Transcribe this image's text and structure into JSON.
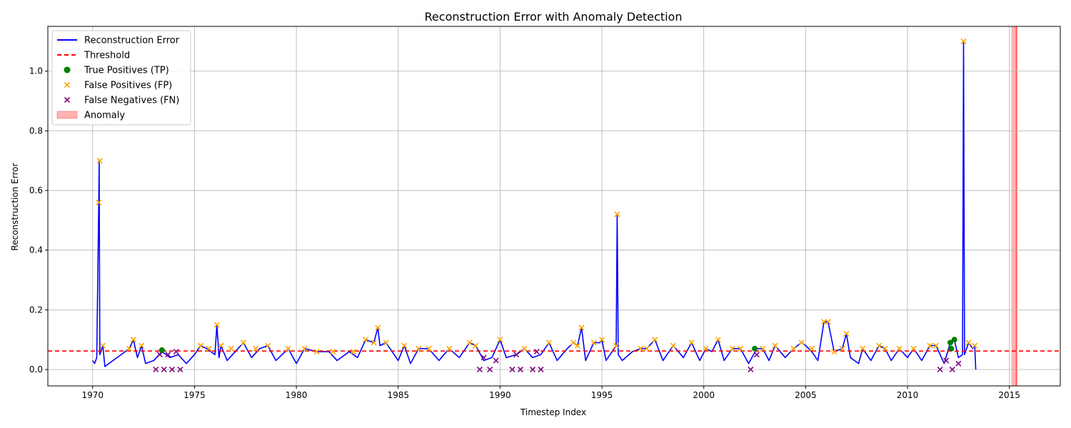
{
  "chart_data": {
    "type": "line",
    "title": "Reconstruction Error with Anomaly Detection",
    "xlabel": "Timestep Index",
    "ylabel": "Reconstruction Error",
    "xlim": [
      1967.8,
      2017.5
    ],
    "ylim": [
      -0.055,
      1.15
    ],
    "x_ticks": [
      1970,
      1975,
      1980,
      1985,
      1990,
      1995,
      2000,
      2005,
      2010,
      2015
    ],
    "y_ticks": [
      0.0,
      0.2,
      0.4,
      0.6,
      0.8,
      1.0
    ],
    "x_tick_labels": [
      "1970",
      "1975",
      "1980",
      "1985",
      "1990",
      "1995",
      "2000",
      "2005",
      "2010",
      "2015"
    ],
    "y_tick_labels": [
      "0.0",
      "0.2",
      "0.4",
      "0.6",
      "0.8",
      "1.0"
    ],
    "grid": true,
    "legend_position": "top-left",
    "colors": {
      "error_line": "#0000ff",
      "threshold": "#ff0000",
      "tp": "#008000",
      "fp": "#ffa500",
      "fn": "#800080",
      "anomaly": "#ff0000"
    },
    "threshold": 0.062,
    "legend": [
      {
        "label": "Reconstruction Error",
        "kind": "line"
      },
      {
        "label": "Threshold",
        "kind": "dashed"
      },
      {
        "label": "True Positives (TP)",
        "kind": "dot"
      },
      {
        "label": "False Positives (FP)",
        "kind": "x-orange"
      },
      {
        "label": "False Negatives (FN)",
        "kind": "x-purple"
      },
      {
        "label": "Anomaly",
        "kind": "patch"
      }
    ],
    "anomaly_span": [
      2015.1,
      2015.35
    ],
    "series": [
      {
        "name": "Reconstruction Error",
        "points": [
          [
            1970.0,
            0.03
          ],
          [
            1970.1,
            0.02
          ],
          [
            1970.2,
            0.04
          ],
          [
            1970.3,
            0.56
          ],
          [
            1970.32,
            0.7
          ],
          [
            1970.35,
            0.05
          ],
          [
            1970.5,
            0.08
          ],
          [
            1970.6,
            0.01
          ],
          [
            1971.0,
            0.03
          ],
          [
            1971.4,
            0.05
          ],
          [
            1971.8,
            0.07
          ],
          [
            1972.0,
            0.1
          ],
          [
            1972.2,
            0.04
          ],
          [
            1972.4,
            0.08
          ],
          [
            1972.6,
            0.02
          ],
          [
            1973.0,
            0.03
          ],
          [
            1973.4,
            0.06
          ],
          [
            1973.8,
            0.04
          ],
          [
            1974.2,
            0.05
          ],
          [
            1974.6,
            0.02
          ],
          [
            1975.0,
            0.05
          ],
          [
            1975.3,
            0.08
          ],
          [
            1975.6,
            0.07
          ],
          [
            1976.0,
            0.05
          ],
          [
            1976.1,
            0.15
          ],
          [
            1976.2,
            0.04
          ],
          [
            1976.3,
            0.08
          ],
          [
            1976.6,
            0.03
          ],
          [
            1977.0,
            0.06
          ],
          [
            1977.4,
            0.09
          ],
          [
            1977.8,
            0.04
          ],
          [
            1978.2,
            0.07
          ],
          [
            1978.6,
            0.08
          ],
          [
            1979.0,
            0.03
          ],
          [
            1979.6,
            0.07
          ],
          [
            1980.0,
            0.02
          ],
          [
            1980.4,
            0.07
          ],
          [
            1981.0,
            0.06
          ],
          [
            1981.6,
            0.06
          ],
          [
            1982.0,
            0.03
          ],
          [
            1982.6,
            0.06
          ],
          [
            1983.0,
            0.04
          ],
          [
            1983.4,
            0.1
          ],
          [
            1983.8,
            0.09
          ],
          [
            1984.0,
            0.14
          ],
          [
            1984.1,
            0.08
          ],
          [
            1984.4,
            0.09
          ],
          [
            1984.7,
            0.06
          ],
          [
            1985.0,
            0.03
          ],
          [
            1985.3,
            0.08
          ],
          [
            1985.6,
            0.02
          ],
          [
            1986.0,
            0.07
          ],
          [
            1986.5,
            0.07
          ],
          [
            1987.0,
            0.03
          ],
          [
            1987.5,
            0.07
          ],
          [
            1988.0,
            0.04
          ],
          [
            1988.5,
            0.09
          ],
          [
            1988.8,
            0.08
          ],
          [
            1989.2,
            0.03
          ],
          [
            1989.6,
            0.04
          ],
          [
            1990.0,
            0.1
          ],
          [
            1990.3,
            0.04
          ],
          [
            1990.8,
            0.05
          ],
          [
            1991.2,
            0.07
          ],
          [
            1991.6,
            0.04
          ],
          [
            1992.0,
            0.05
          ],
          [
            1992.4,
            0.09
          ],
          [
            1992.8,
            0.03
          ],
          [
            1993.3,
            0.07
          ],
          [
            1993.6,
            0.09
          ],
          [
            1993.8,
            0.08
          ],
          [
            1994.0,
            0.14
          ],
          [
            1994.2,
            0.03
          ],
          [
            1994.6,
            0.09
          ],
          [
            1994.9,
            0.09
          ],
          [
            1995.0,
            0.1
          ],
          [
            1995.2,
            0.03
          ],
          [
            1995.4,
            0.05
          ],
          [
            1995.7,
            0.08
          ],
          [
            1995.75,
            0.52
          ],
          [
            1995.8,
            0.05
          ],
          [
            1996.0,
            0.03
          ],
          [
            1996.5,
            0.06
          ],
          [
            1996.9,
            0.07
          ],
          [
            1997.2,
            0.07
          ],
          [
            1997.6,
            0.1
          ],
          [
            1998.0,
            0.03
          ],
          [
            1998.5,
            0.08
          ],
          [
            1999.0,
            0.04
          ],
          [
            1999.4,
            0.09
          ],
          [
            1999.8,
            0.03
          ],
          [
            2000.1,
            0.07
          ],
          [
            2000.4,
            0.06
          ],
          [
            2000.7,
            0.1
          ],
          [
            2001.0,
            0.03
          ],
          [
            2001.4,
            0.07
          ],
          [
            2001.8,
            0.07
          ],
          [
            2002.2,
            0.02
          ],
          [
            2002.6,
            0.07
          ],
          [
            2002.9,
            0.07
          ],
          [
            2003.2,
            0.03
          ],
          [
            2003.5,
            0.08
          ],
          [
            2004.0,
            0.04
          ],
          [
            2004.4,
            0.07
          ],
          [
            2004.8,
            0.09
          ],
          [
            2005.0,
            0.08
          ],
          [
            2005.3,
            0.06
          ],
          [
            2005.6,
            0.03
          ],
          [
            2005.9,
            0.16
          ],
          [
            2006.1,
            0.16
          ],
          [
            2006.4,
            0.06
          ],
          [
            2006.8,
            0.07
          ],
          [
            2007.0,
            0.12
          ],
          [
            2007.2,
            0.04
          ],
          [
            2007.6,
            0.02
          ],
          [
            2007.8,
            0.07
          ],
          [
            2008.2,
            0.03
          ],
          [
            2008.6,
            0.08
          ],
          [
            2008.9,
            0.07
          ],
          [
            2009.2,
            0.03
          ],
          [
            2009.6,
            0.07
          ],
          [
            2010.0,
            0.04
          ],
          [
            2010.3,
            0.07
          ],
          [
            2010.7,
            0.03
          ],
          [
            2011.1,
            0.08
          ],
          [
            2011.4,
            0.08
          ],
          [
            2011.8,
            0.02
          ],
          [
            2012.1,
            0.09
          ],
          [
            2012.3,
            0.1
          ],
          [
            2012.5,
            0.04
          ],
          [
            2012.7,
            0.05
          ],
          [
            2012.75,
            1.1
          ],
          [
            2012.8,
            0.05
          ],
          [
            2013.0,
            0.09
          ],
          [
            2013.2,
            0.07
          ],
          [
            2013.3,
            0.08
          ],
          [
            2013.35,
            0.0
          ]
        ]
      }
    ],
    "true_positives": [
      [
        1973.4,
        0.065
      ],
      [
        2002.5,
        0.07
      ],
      [
        2012.1,
        0.09
      ],
      [
        2012.3,
        0.1
      ],
      [
        2012.15,
        0.07
      ]
    ],
    "false_positives": [
      [
        1970.3,
        0.56
      ],
      [
        1970.35,
        0.7
      ],
      [
        1970.5,
        0.08
      ],
      [
        1971.8,
        0.07
      ],
      [
        1972.0,
        0.1
      ],
      [
        1972.4,
        0.08
      ],
      [
        1975.3,
        0.08
      ],
      [
        1975.7,
        0.07
      ],
      [
        1976.1,
        0.15
      ],
      [
        1976.3,
        0.08
      ],
      [
        1976.8,
        0.07
      ],
      [
        1977.4,
        0.09
      ],
      [
        1978.0,
        0.07
      ],
      [
        1978.6,
        0.08
      ],
      [
        1979.6,
        0.07
      ],
      [
        1980.4,
        0.07
      ],
      [
        1981.0,
        0.06
      ],
      [
        1981.8,
        0.06
      ],
      [
        1982.8,
        0.06
      ],
      [
        1983.4,
        0.1
      ],
      [
        1983.8,
        0.09
      ],
      [
        1984.0,
        0.14
      ],
      [
        1984.4,
        0.09
      ],
      [
        1985.3,
        0.08
      ],
      [
        1986.0,
        0.07
      ],
      [
        1986.5,
        0.07
      ],
      [
        1987.5,
        0.07
      ],
      [
        1988.5,
        0.09
      ],
      [
        1988.8,
        0.08
      ],
      [
        1990.0,
        0.1
      ],
      [
        1991.2,
        0.07
      ],
      [
        1992.4,
        0.09
      ],
      [
        1993.6,
        0.09
      ],
      [
        1993.8,
        0.08
      ],
      [
        1994.0,
        0.14
      ],
      [
        1994.6,
        0.09
      ],
      [
        1995.0,
        0.1
      ],
      [
        1995.75,
        0.52
      ],
      [
        1995.7,
        0.08
      ],
      [
        1996.9,
        0.07
      ],
      [
        1997.2,
        0.07
      ],
      [
        1997.6,
        0.1
      ],
      [
        1998.5,
        0.08
      ],
      [
        1999.4,
        0.09
      ],
      [
        2000.1,
        0.07
      ],
      [
        2000.7,
        0.1
      ],
      [
        2001.4,
        0.07
      ],
      [
        2001.8,
        0.07
      ],
      [
        2002.9,
        0.07
      ],
      [
        2003.5,
        0.08
      ],
      [
        2004.4,
        0.07
      ],
      [
        2004.8,
        0.09
      ],
      [
        2005.3,
        0.07
      ],
      [
        2005.9,
        0.16
      ],
      [
        2006.1,
        0.16
      ],
      [
        2006.4,
        0.06
      ],
      [
        2006.8,
        0.07
      ],
      [
        2007.0,
        0.12
      ],
      [
        2007.8,
        0.07
      ],
      [
        2008.6,
        0.08
      ],
      [
        2008.9,
        0.07
      ],
      [
        2009.6,
        0.07
      ],
      [
        2010.3,
        0.07
      ],
      [
        2011.1,
        0.08
      ],
      [
        2011.4,
        0.08
      ],
      [
        2012.75,
        1.1
      ],
      [
        2013.0,
        0.09
      ],
      [
        2013.3,
        0.08
      ]
    ],
    "false_negatives": [
      [
        1973.1,
        0.0
      ],
      [
        1973.3,
        0.05
      ],
      [
        1973.5,
        0.0
      ],
      [
        1973.7,
        0.05
      ],
      [
        1973.9,
        0.0
      ],
      [
        1974.1,
        0.06
      ],
      [
        1974.3,
        0.0
      ],
      [
        1989.0,
        0.0
      ],
      [
        1989.2,
        0.04
      ],
      [
        1989.5,
        0.0
      ],
      [
        1989.8,
        0.03
      ],
      [
        1990.6,
        0.0
      ],
      [
        1990.8,
        0.05
      ],
      [
        1991.0,
        0.0
      ],
      [
        1991.6,
        0.0
      ],
      [
        1991.8,
        0.06
      ],
      [
        1992.0,
        0.0
      ],
      [
        2002.3,
        0.0
      ],
      [
        2002.6,
        0.05
      ],
      [
        2011.6,
        0.0
      ],
      [
        2011.9,
        0.03
      ],
      [
        2012.2,
        0.0
      ],
      [
        2012.5,
        0.02
      ]
    ]
  }
}
